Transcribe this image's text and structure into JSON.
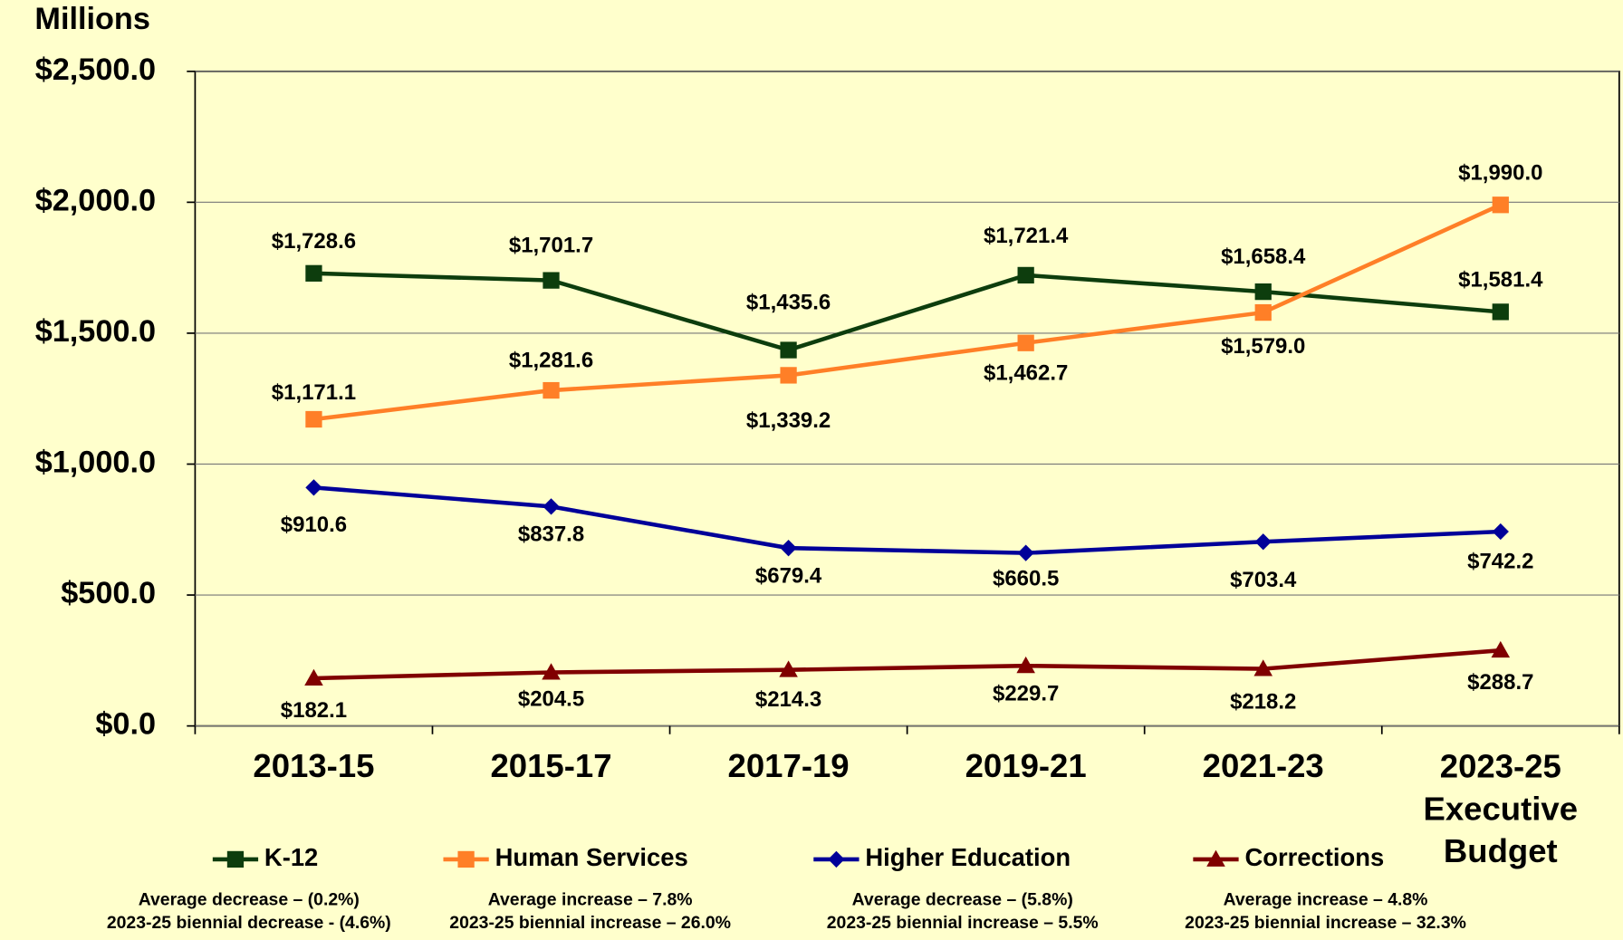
{
  "chart_data": {
    "type": "line",
    "y_axis_label": "Millions",
    "categories": [
      "2013-15",
      "2015-17",
      "2017-19",
      "2019-21",
      "2021-23",
      "2023-25 Executive Budget"
    ],
    "ylim": [
      0,
      2500
    ],
    "yticks": [
      {
        "value": 0,
        "label": "$0.0"
      },
      {
        "value": 500,
        "label": "$500.0"
      },
      {
        "value": 1000,
        "label": "$1,000.0"
      },
      {
        "value": 1500,
        "label": "$1,500.0"
      },
      {
        "value": 2000,
        "label": "$2,000.0"
      },
      {
        "value": 2500,
        "label": "$2,500.0"
      }
    ],
    "grid": true,
    "legend": "bottom",
    "series": [
      {
        "name": "K-12",
        "color": "#0d3d0d",
        "marker": "square",
        "values": [
          1728.6,
          1701.7,
          1435.6,
          1721.4,
          1658.4,
          1581.4
        ],
        "value_labels": [
          "$1,728.6",
          "$1,701.7",
          "$1,435.6",
          "$1,721.4",
          "$1,658.4",
          "$1,581.4"
        ],
        "notes": [
          "Average decrease – (0.2%)",
          "2023-25 biennial decrease - (4.6%)"
        ]
      },
      {
        "name": "Human Services",
        "color": "#ff7f27",
        "marker": "square",
        "values": [
          1171.1,
          1281.6,
          1339.2,
          1462.7,
          1579.0,
          1990.0
        ],
        "value_labels": [
          "$1,171.1",
          "$1,281.6",
          "$1,339.2",
          "$1,462.7",
          "$1,579.0",
          "$1,990.0"
        ],
        "notes": [
          "Average increase – 7.8%",
          "2023-25 biennial increase – 26.0%"
        ]
      },
      {
        "name": "Higher Education",
        "color": "#000099",
        "marker": "diamond",
        "values": [
          910.6,
          837.8,
          679.4,
          660.5,
          703.4,
          742.2
        ],
        "value_labels": [
          "$910.6",
          "$837.8",
          "$679.4",
          "$660.5",
          "$703.4",
          "$742.2"
        ],
        "notes": [
          "Average decrease – (5.8%)",
          "2023-25 biennial increase – 5.5%"
        ]
      },
      {
        "name": "Corrections",
        "color": "#800000",
        "marker": "triangle",
        "values": [
          182.1,
          204.5,
          214.3,
          229.7,
          218.2,
          288.7
        ],
        "value_labels": [
          "$182.1",
          "$204.5",
          "$214.3",
          "$229.7",
          "$218.2",
          "$288.7"
        ],
        "notes": [
          "Average increase – 4.8%",
          "2023-25 biennial increase – 32.3%"
        ]
      }
    ]
  }
}
